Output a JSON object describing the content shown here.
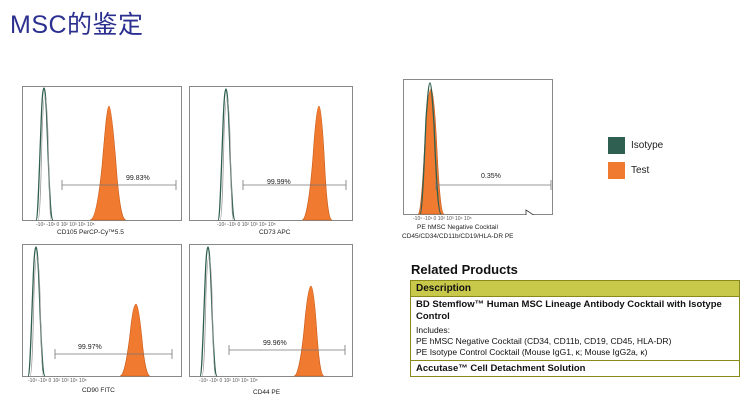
{
  "title": "MSC的鉴定",
  "legend": {
    "items": [
      {
        "label": "Isotype",
        "color": "#2f5f50"
      },
      {
        "label": "Test",
        "color": "#f07a30"
      }
    ]
  },
  "colors": {
    "isotype": "#2f5f50",
    "test": "#f07a30",
    "table_header": "#c8c84a"
  },
  "panels": [
    {
      "id": "cd105",
      "marker": "CD105 PerCP-Cy™5.5",
      "percent": "99.83%"
    },
    {
      "id": "cd73",
      "marker": "CD73 APC",
      "percent": "99.99%"
    },
    {
      "id": "neg",
      "marker": "PE hMSC Negative Cocktail",
      "marker2": "CD45/CD34/CD11b/CD19/HLA-DR PE",
      "percent": "0.35%"
    },
    {
      "id": "cd90",
      "marker": "CD90 FITC",
      "percent": "99.97%"
    },
    {
      "id": "cd44",
      "marker": "CD44 PE",
      "percent": "99.96%"
    }
  ],
  "related": {
    "title": "Related Products",
    "header": "Description",
    "product_name": "BD Stemflow™ Human MSC Lineage Antibody Cocktail with Isotype Control",
    "includes_label": "Includes:",
    "include_items": [
      "PE hMSC Negative Cocktail (CD34, CD11b, CD19, CD45, HLA-DR)",
      "PE Isotype Control Cocktail (Mouse IgG1, κ; Mouse IgG2a, κ)"
    ],
    "footer_item": "Accutase™ Cell Detachment Solution"
  }
}
